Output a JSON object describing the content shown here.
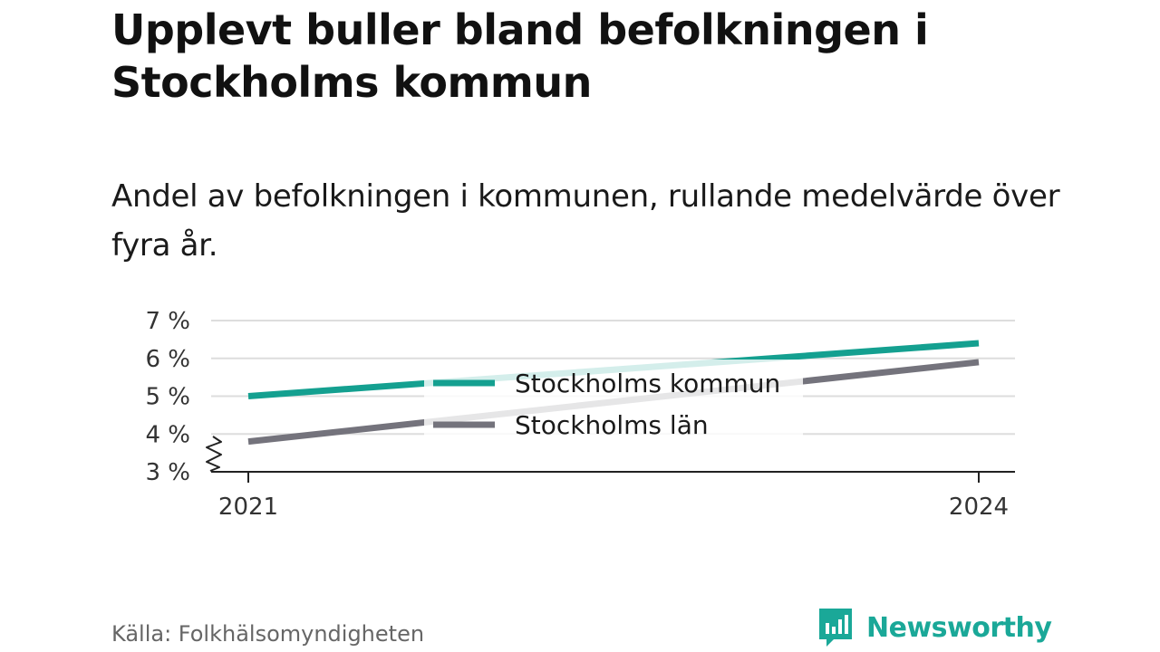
{
  "header": {
    "title": "Upplevt buller bland befolkningen i Stockholms kommun",
    "subtitle": "Andel av befolkningen i kommunen, rullande medelvärde över fyra år."
  },
  "footer": {
    "source": "Källa: Folkhälsomyndigheten",
    "brand_name": "Newsworthy",
    "brand_icon": "bar-chart-speech-bubble-icon"
  },
  "colors": {
    "accent": "#1aa898",
    "kommun": "#14a090",
    "lan": "#74737c",
    "grid": "#dddddd",
    "axis": "#222222"
  },
  "chart_data": {
    "type": "line",
    "x": [
      2021,
      2024
    ],
    "series": [
      {
        "name": "Stockholms kommun",
        "values": [
          5.0,
          6.4
        ],
        "color": "#14a090"
      },
      {
        "name": "Stockholms län",
        "values": [
          3.8,
          5.9
        ],
        "color": "#74737c"
      }
    ],
    "xticks": [
      "2021",
      "2024"
    ],
    "yticks": [
      "3 %",
      "4 %",
      "5 %",
      "6 %",
      "7 %"
    ],
    "ytick_values": [
      3,
      4,
      5,
      6,
      7
    ],
    "ylim": [
      3,
      7
    ],
    "xlim": [
      2021,
      2024
    ],
    "y_axis_break": true,
    "grid": true,
    "legend_position": "center"
  }
}
